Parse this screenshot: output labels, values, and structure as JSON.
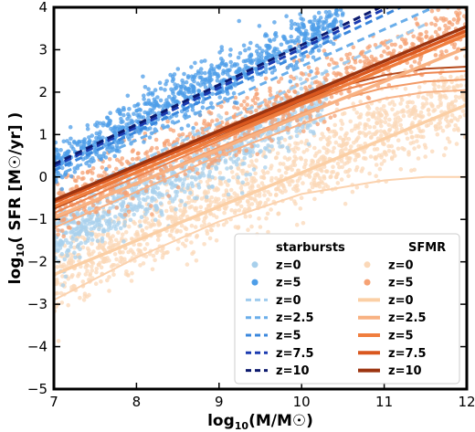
{
  "chart_data": {
    "type": "scatter",
    "title": "",
    "xlabel": "log10(M/M☉)",
    "ylabel": "log10( SFR [M☉/yr] )",
    "xlim": [
      7,
      12
    ],
    "ylim": [
      -5,
      4
    ],
    "xticks": [
      7,
      8,
      9,
      10,
      11,
      12
    ],
    "yticks": [
      -5,
      -4,
      -3,
      -2,
      -1,
      0,
      1,
      2,
      3,
      4
    ],
    "grid": false,
    "legend_position": "lower-right",
    "legend": {
      "starbursts_title": "starbursts",
      "sfmr_title": "SFMR"
    },
    "scatter_series": [
      {
        "name": "z=0",
        "group": "starbursts",
        "color": "#a8d0ec",
        "slope": 1.0,
        "intercept": -8.5,
        "scatter": 0.35,
        "x_range": [
          7,
          10.3
        ],
        "count": 900
      },
      {
        "name": "z=5",
        "group": "starbursts",
        "color": "#4e9ee8",
        "slope": 1.0,
        "intercept": -6.7,
        "scatter": 0.3,
        "x_range": [
          7,
          10.5
        ],
        "count": 900
      },
      {
        "name": "z=0",
        "group": "SFMR",
        "color": "#fbd8b8",
        "slope": 0.85,
        "intercept": -8.3,
        "scatter": 0.45,
        "x_range": [
          7,
          12
        ],
        "count": 1300
      },
      {
        "name": "z=5",
        "group": "SFMR",
        "color": "#f6a274",
        "slope": 0.88,
        "intercept": -6.9,
        "scatter": 0.35,
        "x_range": [
          7,
          12
        ],
        "count": 900
      }
    ],
    "line_series": [
      {
        "name": "z=0",
        "group": "starbursts",
        "style": "dashed",
        "color": "#9fcbee",
        "x": [
          7,
          11.5
        ],
        "y": [
          -0.6,
          3.6
        ]
      },
      {
        "name": "z=2.5",
        "group": "starbursts",
        "style": "dashed",
        "color": "#6aaeea",
        "x": [
          7,
          11.6
        ],
        "y": [
          0.0,
          4.0
        ]
      },
      {
        "name": "z=5",
        "group": "starbursts",
        "style": "dashed",
        "color": "#3a87dd",
        "x": [
          7,
          11.2
        ],
        "y": [
          0.15,
          4.0
        ]
      },
      {
        "name": "z=7.5",
        "group": "starbursts",
        "style": "dashed",
        "color": "#1a3ab0",
        "x": [
          7,
          11.05
        ],
        "y": [
          0.25,
          4.0
        ]
      },
      {
        "name": "z=10",
        "group": "starbursts",
        "style": "dashed",
        "color": "#0c1a6e",
        "x": [
          7,
          10.95
        ],
        "y": [
          0.3,
          4.0
        ]
      },
      {
        "name": "z=0",
        "group": "SFMR",
        "style": "solid",
        "color": "#fbcfa5",
        "x": [
          7,
          12
        ],
        "y": [
          -2.3,
          1.7
        ]
      },
      {
        "name": "z=2.5",
        "group": "SFMR",
        "style": "solid",
        "color": "#f8b283",
        "x": [
          7,
          12
        ],
        "y": [
          -0.95,
          3.05
        ]
      },
      {
        "name": "z=5",
        "group": "SFMR",
        "style": "solid",
        "color": "#f07e3e",
        "x": [
          7,
          12
        ],
        "y": [
          -0.7,
          3.35
        ]
      },
      {
        "name": "z=7.5",
        "group": "SFMR",
        "style": "solid",
        "color": "#d9571e",
        "x": [
          7,
          12
        ],
        "y": [
          -0.6,
          3.45
        ]
      },
      {
        "name": "z=10",
        "group": "SFMR",
        "style": "solid",
        "color": "#9c3410",
        "x": [
          7,
          12
        ],
        "y": [
          -0.55,
          3.55
        ]
      }
    ],
    "curved_series": [
      {
        "group": "SFMR",
        "color": "#fbd2ae",
        "x": [
          7,
          8,
          9,
          10,
          11,
          11.5,
          12
        ],
        "y": [
          -2.9,
          -1.9,
          -1.05,
          -0.4,
          -0.08,
          0.0,
          0.0
        ]
      },
      {
        "group": "SFMR",
        "color": "#f7b286",
        "x": [
          7,
          8,
          9,
          10,
          10.5,
          11,
          11.5,
          12
        ],
        "y": [
          -1.2,
          -0.35,
          0.5,
          1.25,
          1.6,
          1.85,
          2.0,
          2.05
        ]
      },
      {
        "group": "SFMR",
        "color": "#f29a66",
        "x": [
          7,
          8,
          9,
          10,
          10.5,
          11,
          11.5,
          12
        ],
        "y": [
          -1.0,
          -0.15,
          0.7,
          1.5,
          1.85,
          2.1,
          2.25,
          2.3
        ]
      },
      {
        "group": "SFMR",
        "color": "#ee8650",
        "x": [
          7,
          8,
          9,
          10,
          10.5,
          11,
          11.5,
          12
        ],
        "y": [
          -0.85,
          0.0,
          0.85,
          1.7,
          2.05,
          2.3,
          2.45,
          2.5
        ]
      },
      {
        "group": "SFMR",
        "color": "#b4481a",
        "x": [
          7,
          8,
          9,
          10,
          10.5,
          11,
          11.5,
          12
        ],
        "y": [
          -0.75,
          0.1,
          0.95,
          1.8,
          2.15,
          2.4,
          2.55,
          2.6
        ]
      }
    ],
    "legend_entries": {
      "starbursts": [
        {
          "label": "z=0",
          "kind": "dot",
          "color": "#a8d0ec"
        },
        {
          "label": "z=5",
          "kind": "dot",
          "color": "#4e9ee8"
        },
        {
          "label": "z=0",
          "kind": "dash",
          "color": "#9fcbee"
        },
        {
          "label": "z=2.5",
          "kind": "dash",
          "color": "#6aaeea"
        },
        {
          "label": "z=5",
          "kind": "dash",
          "color": "#3a87dd"
        },
        {
          "label": "z=7.5",
          "kind": "dash",
          "color": "#1a3ab0"
        },
        {
          "label": "z=10",
          "kind": "dash",
          "color": "#0c1a6e"
        }
      ],
      "sfmr": [
        {
          "label": "z=0",
          "kind": "dot",
          "color": "#fbd8b8"
        },
        {
          "label": "z=5",
          "kind": "dot",
          "color": "#f6a274"
        },
        {
          "label": "z=0",
          "kind": "solid",
          "color": "#fbcfa5"
        },
        {
          "label": "z=2.5",
          "kind": "solid",
          "color": "#f8b283"
        },
        {
          "label": "z=5",
          "kind": "solid",
          "color": "#f07e3e"
        },
        {
          "label": "z=7.5",
          "kind": "solid",
          "color": "#d9571e"
        },
        {
          "label": "z=10",
          "kind": "solid",
          "color": "#9c3410"
        }
      ]
    }
  }
}
